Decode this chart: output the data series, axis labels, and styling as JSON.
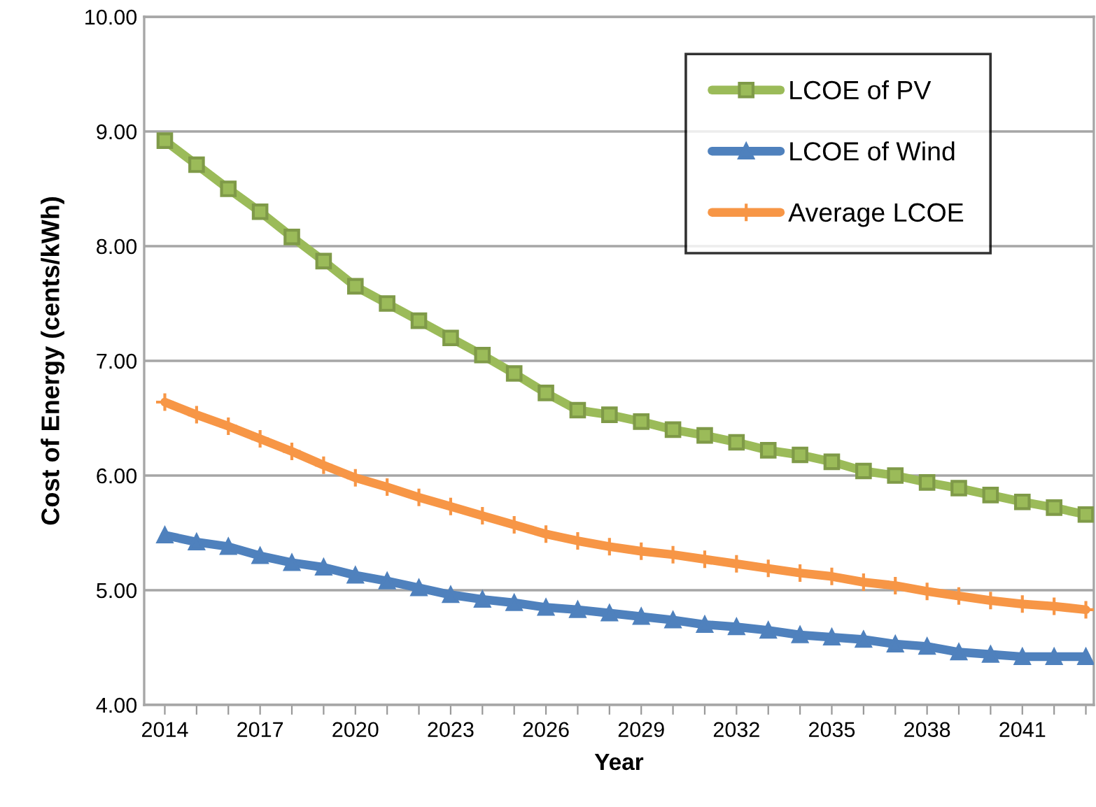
{
  "chart_data": {
    "type": "line",
    "xlabel": "Year",
    "ylabel": "Cost of Energy (cents/kWh)",
    "categories": [
      "2014",
      null,
      null,
      "2017",
      null,
      null,
      "2020",
      null,
      null,
      "2023",
      null,
      null,
      "2026",
      null,
      null,
      "2029",
      null,
      null,
      "2032",
      null,
      null,
      "2035",
      null,
      null,
      "2038",
      null,
      null,
      "2041",
      null,
      null
    ],
    "series": [
      {
        "name": "LCOE of PV",
        "color": "#9bbb59",
        "marker": "square",
        "values": [
          8.92,
          8.71,
          8.5,
          8.3,
          8.08,
          7.87,
          7.65,
          7.5,
          7.35,
          7.2,
          7.05,
          6.89,
          6.72,
          6.57,
          6.53,
          6.47,
          6.4,
          6.35,
          6.29,
          6.22,
          6.18,
          6.12,
          6.04,
          6.0,
          5.94,
          5.89,
          5.83,
          5.77,
          5.72,
          5.66
        ]
      },
      {
        "name": "LCOE of Wind",
        "color": "#4f81bd",
        "marker": "triangle",
        "values": [
          5.48,
          5.42,
          5.38,
          5.3,
          5.24,
          5.2,
          5.13,
          5.08,
          5.02,
          4.96,
          4.92,
          4.89,
          4.85,
          4.83,
          4.8,
          4.77,
          4.74,
          4.7,
          4.68,
          4.65,
          4.61,
          4.59,
          4.57,
          4.53,
          4.51,
          4.46,
          4.44,
          4.42,
          4.42,
          4.42
        ]
      },
      {
        "name": "Average LCOE",
        "color": "#f79646",
        "marker": "cross",
        "values": [
          6.64,
          6.53,
          6.43,
          6.32,
          6.21,
          6.09,
          5.98,
          5.9,
          5.81,
          5.73,
          5.65,
          5.57,
          5.49,
          5.43,
          5.38,
          5.34,
          5.31,
          5.27,
          5.23,
          5.19,
          5.15,
          5.12,
          5.07,
          5.04,
          4.99,
          4.95,
          4.91,
          4.88,
          4.86,
          4.83
        ]
      }
    ],
    "ylim": [
      4,
      10
    ],
    "yticks": [
      {
        "value": 4,
        "label": "4.00"
      },
      {
        "value": 5,
        "label": "5.00"
      },
      {
        "value": 6,
        "label": "6.00"
      },
      {
        "value": 7,
        "label": "7.00"
      },
      {
        "value": 8,
        "label": "8.00"
      },
      {
        "value": 9,
        "label": "9.00"
      },
      {
        "value": 10,
        "label": "10.00"
      }
    ],
    "grid": "y",
    "legend": "top right",
    "line_style": "solid"
  }
}
